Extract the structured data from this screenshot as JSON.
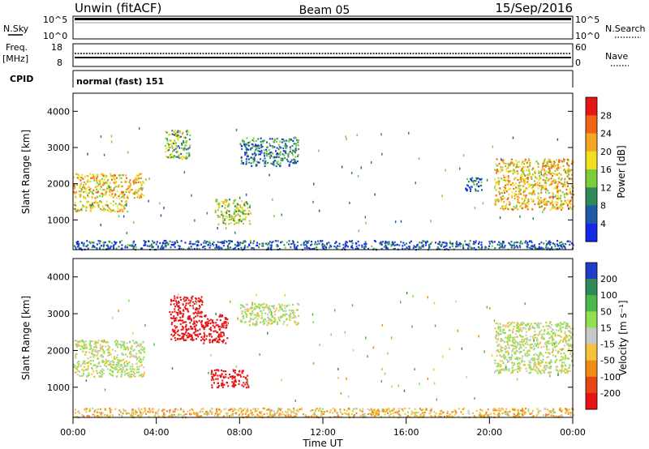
{
  "header": {
    "title": "Unwin (fitACF)",
    "beam": "Beam 05",
    "date": "15/Sep/2016"
  },
  "param_panels": {
    "nsky_label": "N.Sky",
    "nsky_ticks_left": [
      "10^5",
      "10^0"
    ],
    "nsky_ticks_right": [
      "10^5",
      "10^0"
    ],
    "nsearch_label": "N.Search",
    "freq_label": "Freq.",
    "freq_unit": "[MHz]",
    "freq_ticks": [
      "18",
      "8"
    ],
    "nave_label": "Nave",
    "nave_ticks": [
      "60",
      "0"
    ],
    "cpid_label": "CPID",
    "cpid_value": "normal (fast) 151"
  },
  "chart_data": [
    {
      "type": "heatmap",
      "parameter": "Power",
      "ylabel": "Slant Range [km]",
      "yticks": [
        "4000",
        "3000",
        "2000",
        "1000"
      ],
      "ylim": [
        180,
        4500
      ],
      "xlim": [
        0,
        24
      ],
      "colorbar": {
        "label": "Power [dB]",
        "ticks": [
          "28",
          "24",
          "20",
          "16",
          "12",
          "8",
          "4"
        ],
        "range": [
          0,
          32
        ],
        "colors": [
          "#1428e6",
          "#1e5aa8",
          "#2e8b57",
          "#7ccd3c",
          "#f0e020",
          "#f5a623",
          "#f06414",
          "#e61414"
        ]
      },
      "echo_regions": [
        {
          "t0": 0.0,
          "t1": 3.4,
          "r0": 1600,
          "r1": 2300,
          "level": 20
        },
        {
          "t0": 0.0,
          "t1": 2.6,
          "r0": 1250,
          "r1": 1550,
          "level": 18
        },
        {
          "t0": 4.4,
          "t1": 5.6,
          "r0": 2700,
          "r1": 3500,
          "level": 14
        },
        {
          "t0": 6.8,
          "t1": 8.5,
          "r0": 900,
          "r1": 1600,
          "level": 16
        },
        {
          "t0": 8.0,
          "t1": 10.8,
          "r0": 2500,
          "r1": 3300,
          "level": 8
        },
        {
          "t0": 18.8,
          "t1": 19.6,
          "r0": 1800,
          "r1": 2200,
          "level": 8
        },
        {
          "t0": 20.2,
          "t1": 24.0,
          "r0": 1300,
          "r1": 2700,
          "level": 20
        },
        {
          "t0": 0.0,
          "t1": 24.0,
          "r0": 200,
          "r1": 450,
          "level": 6
        }
      ]
    },
    {
      "type": "heatmap",
      "parameter": "Velocity",
      "ylabel": "Slant Range [km]",
      "yticks": [
        "4000",
        "3000",
        "2000",
        "1000"
      ],
      "ylim": [
        180,
        4500
      ],
      "xlim": [
        0,
        24
      ],
      "xticks": [
        "00:00",
        "04:00",
        "08:00",
        "12:00",
        "16:00",
        "20:00",
        "00:00"
      ],
      "xlabel": "Time UT",
      "colorbar": {
        "label": "Velocity [m s⁻¹]",
        "ticks": [
          "200",
          "100",
          "50",
          "15",
          "-15",
          "-50",
          "-100",
          "-200"
        ],
        "colors": [
          "#1e3cc8",
          "#2e8b57",
          "#4cb84c",
          "#90e050",
          "#c8c8c8",
          "#f5c23c",
          "#f08c14",
          "#e64614",
          "#e61414"
        ]
      },
      "echo_regions": [
        {
          "t0": 0.0,
          "t1": 3.4,
          "r0": 1300,
          "r1": 2300,
          "velocity": 0
        },
        {
          "t0": 4.6,
          "t1": 6.2,
          "r0": 2300,
          "r1": 3500,
          "velocity": -250
        },
        {
          "t0": 6.2,
          "t1": 7.4,
          "r0": 2200,
          "r1": 3000,
          "velocity": -250
        },
        {
          "t0": 6.6,
          "t1": 8.4,
          "r0": 1000,
          "r1": 1500,
          "velocity": -250
        },
        {
          "t0": 8.0,
          "t1": 10.8,
          "r0": 2700,
          "r1": 3300,
          "velocity": 0
        },
        {
          "t0": 20.2,
          "t1": 24.0,
          "r0": 1400,
          "r1": 2800,
          "velocity": 0
        },
        {
          "t0": 0.0,
          "t1": 24.0,
          "r0": 200,
          "r1": 450,
          "velocity": -40
        }
      ]
    }
  ]
}
